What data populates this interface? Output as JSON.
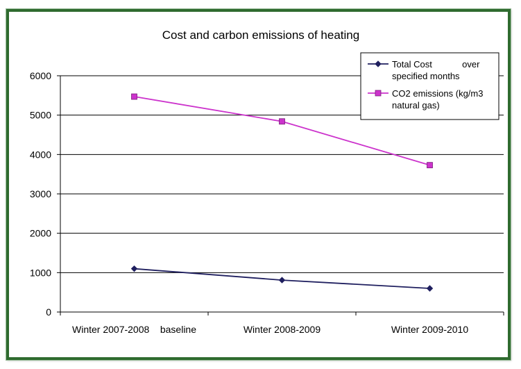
{
  "chart_data": {
    "type": "line",
    "title": "Cost and carbon emissions of heating",
    "xlabel": "",
    "ylabel": "",
    "categories": [
      "Winter 2007-2008    baseline",
      "Winter 2008-2009",
      "Winter 2009-2010"
    ],
    "ylim": [
      0,
      6000
    ],
    "yticks": [
      0,
      1000,
      2000,
      3000,
      4000,
      5000,
      6000
    ],
    "grid": true,
    "legend_position": "top-right",
    "series": [
      {
        "name": "Total Cost            over specified months",
        "legend_lines": [
          "Total Cost            over",
          "specified months"
        ],
        "values": [
          1100,
          810,
          600
        ],
        "color": "#1f1f5f",
        "marker": "diamond"
      },
      {
        "name": "CO2 emissions (kg/m3 natural gas)",
        "legend_lines": [
          "CO2 emissions (kg/m3",
          "natural gas)"
        ],
        "values": [
          5470,
          4840,
          3730
        ],
        "color": "#cc33cc",
        "marker": "square"
      }
    ]
  }
}
